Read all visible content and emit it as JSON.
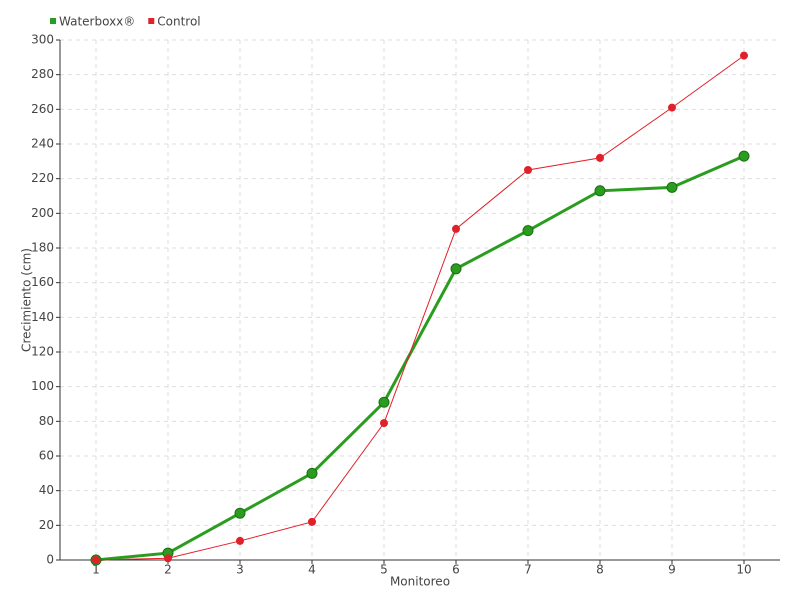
{
  "chart_data": {
    "type": "line",
    "x": [
      1,
      2,
      3,
      4,
      5,
      6,
      7,
      8,
      9,
      10
    ],
    "xlim": [
      0.5,
      10.5
    ],
    "xticks": [
      1,
      2,
      3,
      4,
      5,
      6,
      7,
      8,
      9,
      10
    ],
    "ylim": [
      0,
      300
    ],
    "yticks": [
      0,
      20,
      40,
      60,
      80,
      100,
      120,
      140,
      160,
      180,
      200,
      220,
      240,
      260,
      280,
      300
    ],
    "xlabel": "Monitoreo",
    "ylabel": "Crecimiento (cm)",
    "grid": true,
    "legend": "top-left",
    "series": [
      {
        "name": "Waterboxx®",
        "color": "#2a9d1f",
        "values": [
          0,
          4,
          27,
          50,
          91,
          168,
          190,
          213,
          215,
          233
        ]
      },
      {
        "name": "Control",
        "color": "#e0202a",
        "values": [
          0,
          1,
          11,
          22,
          79,
          191,
          225,
          232,
          261,
          291
        ]
      }
    ]
  }
}
